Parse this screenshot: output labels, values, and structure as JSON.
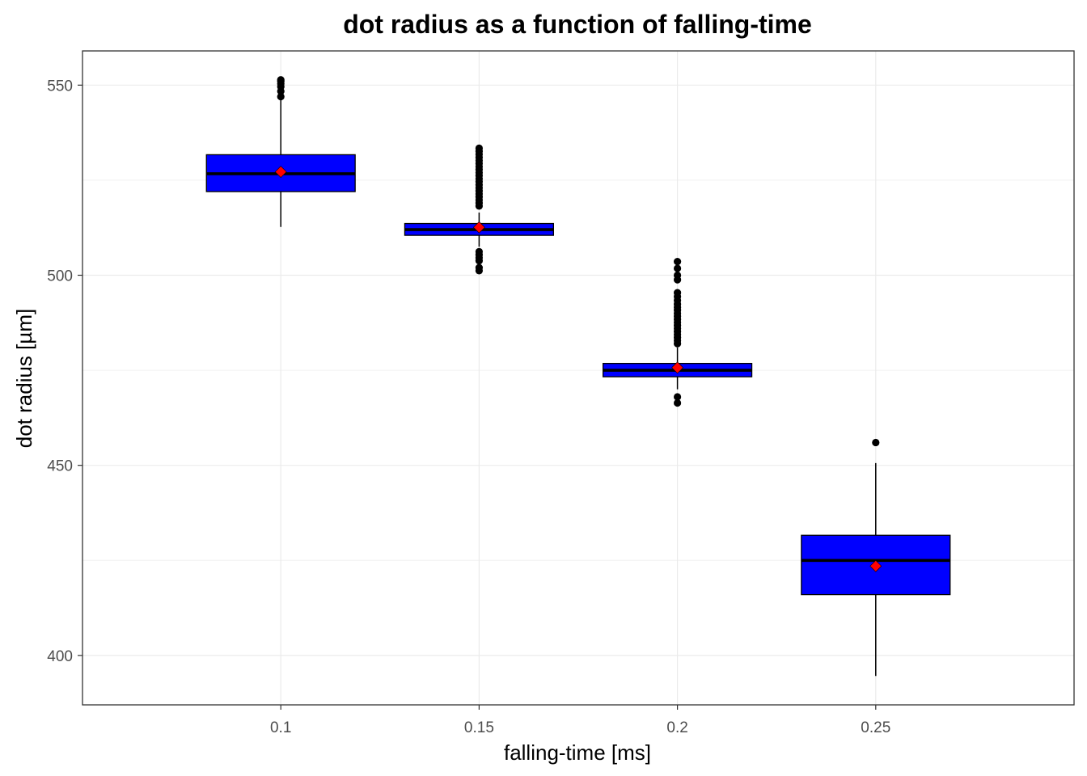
{
  "chart_data": {
    "type": "boxplot",
    "title": "dot radius as a function of falling-time",
    "xlabel": "falling-time [ms]",
    "ylabel": "dot radius [µm]",
    "categories": [
      "0.1",
      "0.15",
      "0.2",
      "0.25"
    ],
    "ylim": [
      387,
      559
    ],
    "y_ticks": [
      400,
      450,
      500,
      550
    ],
    "y_minor_ticks": [
      425,
      475,
      525
    ],
    "grid": true,
    "box_fill": "#0000ff",
    "box_stroke": "#000000",
    "mean_color": "#ff0000",
    "boxes": [
      {
        "category": "0.1",
        "whisker_low": 512.7,
        "q1": 522.0,
        "median": 526.7,
        "q3": 531.7,
        "whisker_high": 546.2,
        "mean": 527.2,
        "outliers": [
          547.0,
          548.4,
          549.6,
          550.4,
          551.0,
          551.4
        ]
      },
      {
        "category": "0.15",
        "whisker_low": 507.5,
        "q1": 510.5,
        "median": 512.0,
        "q3": 513.6,
        "whisker_high": 516.5,
        "mean": 512.6,
        "outliers": [
          501.2,
          502.0,
          503.8,
          504.6,
          505.4,
          506.2,
          518.2,
          519.0,
          519.8,
          520.6,
          521.4,
          522.2,
          523.0,
          523.8,
          524.6,
          525.4,
          526.2,
          527.0,
          527.8,
          528.6,
          529.4,
          530.2,
          531.0,
          531.8,
          532.6,
          533.4
        ]
      },
      {
        "category": "0.2",
        "whisker_low": 470.0,
        "q1": 473.3,
        "median": 475.0,
        "q3": 476.8,
        "whisker_high": 481.0,
        "mean": 475.7,
        "outliers": [
          466.4,
          468.0,
          482.0,
          482.8,
          483.6,
          484.4,
          485.2,
          486.0,
          486.8,
          487.6,
          488.4,
          489.2,
          490.0,
          490.8,
          491.6,
          492.4,
          493.4,
          494.4,
          495.4,
          498.8,
          500.0,
          501.8,
          503.6
        ]
      },
      {
        "category": "0.25",
        "whisker_low": 394.6,
        "q1": 416.0,
        "median": 425.0,
        "q3": 431.6,
        "whisker_high": 450.6,
        "mean": 423.5,
        "outliers": [
          456.0
        ]
      }
    ]
  }
}
